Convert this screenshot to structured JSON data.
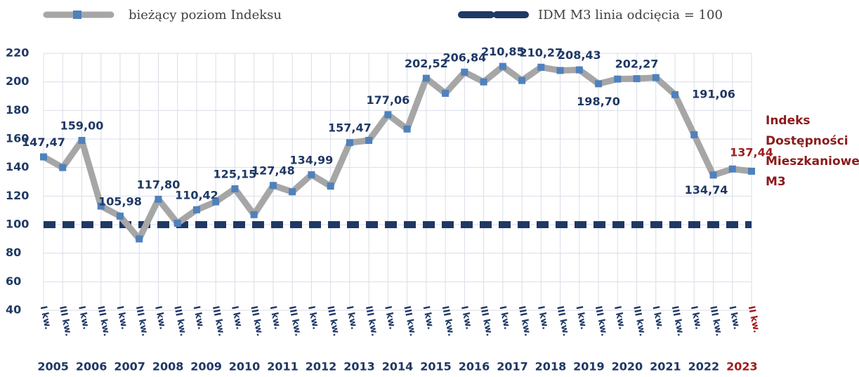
{
  "chart_data": {
    "type": "line",
    "categories": [
      "I kw.",
      "III kw.",
      "I kw.",
      "III kw.",
      "I kw.",
      "III kw.",
      "I kw.",
      "III kw.",
      "I kw.",
      "III kw.",
      "I kw.",
      "III kw.",
      "I kw.",
      "III kw.",
      "I kw.",
      "III kw.",
      "I kw.",
      "III kw.",
      "I kw.",
      "III kw.",
      "I kw.",
      "III kw.",
      "I kw.",
      "III kw.",
      "I kw.",
      "III kw.",
      "I kw.",
      "III kw.",
      "I kw.",
      "III kw.",
      "I kw.",
      "III kw.",
      "I kw.",
      "III kw.",
      "I kw.",
      "III kw.",
      "I kw.",
      "II kw."
    ],
    "years": [
      "2005",
      "2006",
      "2007",
      "2008",
      "2009",
      "2010",
      "2011",
      "2012",
      "2013",
      "2014",
      "2015",
      "2016",
      "2017",
      "2018",
      "2019",
      "2020",
      "2021",
      "2022",
      "2023"
    ],
    "series": [
      {
        "name": "bieżący poziom Indeksu",
        "color": "#a6a6a6",
        "marker_color": "#4f81bd",
        "values": [
          147.47,
          140,
          159.0,
          113,
          105.98,
          90,
          117.8,
          101,
          110.42,
          116,
          125.15,
          107,
          127.48,
          123,
          134.99,
          127,
          157.47,
          159,
          177.06,
          167,
          202.52,
          192,
          206.84,
          200,
          210.85,
          201,
          210.27,
          208,
          208.43,
          198.7,
          202,
          202.27,
          203,
          191.06,
          163,
          134.74,
          139,
          137.44
        ],
        "value_labels": [
          "147,47",
          null,
          "159,00",
          null,
          "105,98",
          null,
          "117,80",
          null,
          "110,42",
          null,
          "125,15",
          null,
          "127,48",
          null,
          "134,99",
          null,
          "157,47",
          null,
          "177,06",
          null,
          "202,52",
          null,
          "206,84",
          null,
          "210,85",
          null,
          "210,27",
          null,
          "208,43",
          "198,70",
          null,
          "202,27",
          null,
          "191,06",
          null,
          "134,74",
          null,
          "137,44"
        ]
      }
    ],
    "reference_line": {
      "name": "IDM M3 linia odcięcia = 100",
      "value": 100,
      "color": "#1f3864"
    },
    "annotation": [
      "Indeks",
      "Dostępności",
      "Mieszkaniowej",
      "M3"
    ],
    "highlight_color": "#a01c1c",
    "ylim": [
      40,
      220
    ],
    "yticks": [
      40,
      60,
      80,
      100,
      120,
      140,
      160,
      180,
      200,
      220
    ],
    "grid": true
  }
}
